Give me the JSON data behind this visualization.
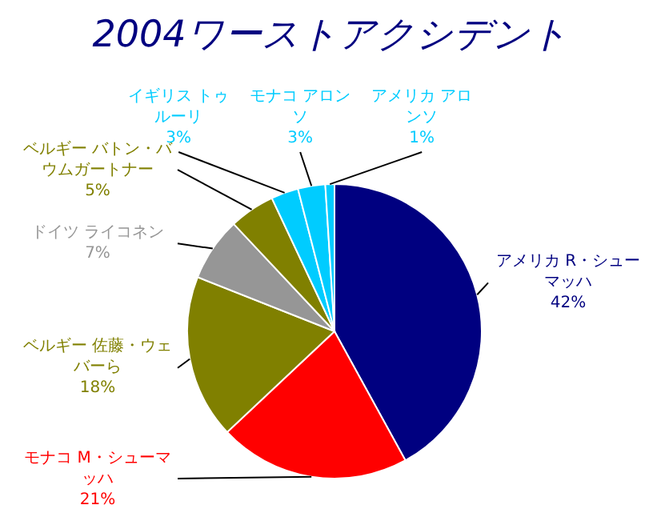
{
  "chart_data": {
    "type": "pie",
    "title": "2004ワーストアクシデント",
    "categories": [
      "アメリカ R・シューマッハ",
      "モナコ M・シューマッハ",
      "ベルギー 佐藤・ウェバーら",
      "ドイツ ライコネン",
      "ベルギー バトン・バウムガートナー",
      "イギリス トゥルーリ",
      "モナコ アロンソ",
      "アメリカ アロンソ"
    ],
    "values": [
      42,
      21,
      18,
      7,
      5,
      3,
      3,
      1
    ],
    "value_labels": [
      "42%",
      "21%",
      "18%",
      "7%",
      "5%",
      "3%",
      "3%",
      "1%"
    ],
    "colors": [
      "#000080",
      "#ff0000",
      "#808000",
      "#969696",
      "#808000",
      "#00ccff",
      "#00ccff",
      "#00ccff"
    ]
  }
}
